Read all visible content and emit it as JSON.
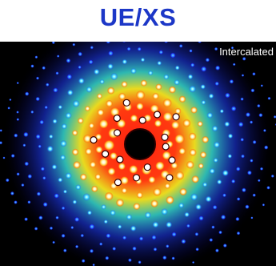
{
  "title": "UE/XS",
  "caption": "Intercalated",
  "colors": {
    "title": "#1c37c7",
    "background": "#000000",
    "ring_outer": "#1b2fff",
    "ring_mid": "#1ad6e0",
    "ring_yellow": "#f0e21d",
    "ring_red": "#ff2a12"
  }
}
